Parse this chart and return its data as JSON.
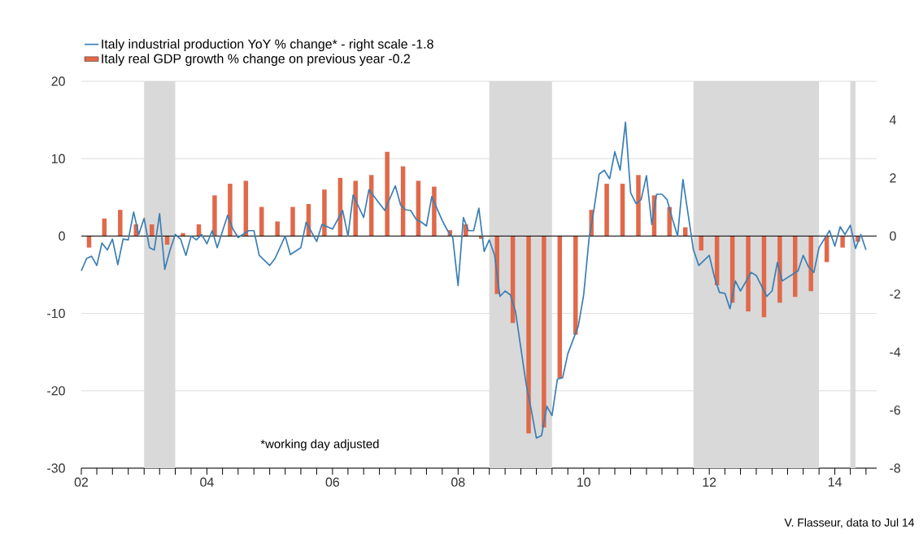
{
  "chart_data": {
    "type": "line",
    "series": [
      {
        "name": "Italy industrial production YoY % change* - right scale -1.8",
        "color": "#3a7fb5",
        "x": [
          "2002-01",
          "2002-02",
          "2002-03",
          "2002-04",
          "2002-05",
          "2002-06",
          "2002-07",
          "2002-08",
          "2002-09",
          "2002-10",
          "2002-11",
          "2002-12",
          "2003-01",
          "2003-02",
          "2003-03",
          "2003-04",
          "2003-05",
          "2003-06",
          "2003-07",
          "2003-08",
          "2003-09",
          "2003-10",
          "2003-11",
          "2003-12",
          "2004-01",
          "2004-02",
          "2004-03",
          "2004-05",
          "2004-06",
          "2004-07",
          "2004-09",
          "2004-10",
          "2004-11",
          "2005-01",
          "2005-02",
          "2005-04",
          "2005-05",
          "2005-07",
          "2005-08",
          "2005-10",
          "2005-11",
          "2006-01",
          "2006-03",
          "2006-04",
          "2006-05",
          "2006-07",
          "2006-08",
          "2006-10",
          "2006-11",
          "2007-01",
          "2007-02",
          "2007-03",
          "2007-04",
          "2007-05",
          "2007-06",
          "2007-07",
          "2007-08",
          "2007-10",
          "2007-11",
          "2007-12",
          "2008-01",
          "2008-02",
          "2008-03",
          "2008-04",
          "2008-05",
          "2008-06",
          "2008-07",
          "2008-08",
          "2008-09",
          "2008-10",
          "2008-11",
          "2008-12",
          "2009-01",
          "2009-02",
          "2009-03",
          "2009-04",
          "2009-05",
          "2009-06",
          "2009-07",
          "2009-08",
          "2009-09",
          "2009-10",
          "2009-12",
          "2010-01",
          "2010-02",
          "2010-03",
          "2010-04",
          "2010-05",
          "2010-06",
          "2010-07",
          "2010-08",
          "2010-09",
          "2010-10",
          "2010-11",
          "2010-12",
          "2011-01",
          "2011-02",
          "2011-03",
          "2011-04",
          "2011-05",
          "2011-06",
          "2011-07",
          "2011-08",
          "2011-10",
          "2011-11",
          "2012-01",
          "2012-02",
          "2012-03",
          "2012-04",
          "2012-05",
          "2012-06",
          "2012-07",
          "2012-09",
          "2012-10",
          "2012-12",
          "2013-01",
          "2013-02",
          "2013-03",
          "2013-06",
          "2013-07",
          "2013-08",
          "2013-09",
          "2013-10",
          "2013-12",
          "2014-01",
          "2014-02",
          "2014-03",
          "2014-04",
          "2014-05",
          "2014-06",
          "2014-07"
        ],
        "values": [
          -4.5,
          -2.9,
          -2.6,
          -3.8,
          -0.9,
          -1.8,
          -0.4,
          -3.7,
          -0.4,
          -0.5,
          3.1,
          0.2,
          2.3,
          -1.5,
          -1.8,
          2.9,
          -4.3,
          -1.8,
          0.2,
          -0.4,
          -2.5,
          0.0,
          -0.5,
          0.2,
          -1.0,
          0.7,
          -1.5,
          2.7,
          0.9,
          -0.2,
          0.7,
          0.7,
          -2.5,
          -3.8,
          -2.9,
          0.0,
          -2.4,
          -1.5,
          1.8,
          -0.7,
          1.5,
          0.9,
          3.3,
          0.0,
          5.3,
          2.4,
          6.0,
          4.2,
          3.3,
          6.5,
          4.0,
          3.4,
          3.3,
          2.2,
          1.8,
          1.3,
          5.1,
          2.0,
          0.7,
          -0.2,
          -6.4,
          2.4,
          0.7,
          0.7,
          3.6,
          -2.0,
          -0.5,
          -2.5,
          -7.8,
          -7.1,
          -7.6,
          -9.8,
          -14.5,
          -19.2,
          -22.3,
          -26.1,
          -25.8,
          -22.0,
          -23.2,
          -18.5,
          -18.3,
          -15.2,
          -11.6,
          -7.6,
          -0.4,
          3.3,
          8.0,
          8.5,
          7.4,
          10.9,
          8.5,
          14.7,
          5.6,
          4.2,
          4.7,
          7.8,
          1.5,
          5.4,
          5.4,
          4.7,
          2.2,
          0.0,
          7.3,
          -1.8,
          -3.8,
          -2.5,
          -5.4,
          -7.3,
          -7.4,
          -9.4,
          -5.8,
          -7.1,
          -4.7,
          -5.1,
          -7.8,
          -7.1,
          -3.4,
          -5.8,
          -4.5,
          -2.5,
          -4.0,
          -4.7,
          -1.5,
          0.7,
          -1.3,
          1.2,
          0.2,
          1.4,
          -1.6,
          0.2,
          -1.8
        ]
      },
      {
        "name": "Italy real GDP growth % change on previous year -0.2",
        "type": "bar",
        "axis": "y2",
        "color": "#e0694a",
        "x": [
          "2002-02-15",
          "2002-05-15",
          "2002-08-15",
          "2002-11-15",
          "2003-02-15",
          "2003-05-15",
          "2003-08-15",
          "2003-11-15",
          "2004-02-15",
          "2004-05-15",
          "2004-08-15",
          "2004-11-15",
          "2005-02-15",
          "2005-05-15",
          "2005-08-15",
          "2005-11-15",
          "2006-02-15",
          "2006-05-15",
          "2006-08-15",
          "2006-11-15",
          "2007-02-15",
          "2007-05-15",
          "2007-08-15",
          "2007-11-15",
          "2008-02-15",
          "2008-05-15",
          "2008-08-15",
          "2008-11-15",
          "2009-02-15",
          "2009-05-15",
          "2009-08-15",
          "2009-11-15",
          "2010-02-15",
          "2010-05-15",
          "2010-08-15",
          "2010-11-15",
          "2011-02-15",
          "2011-05-15",
          "2011-08-15",
          "2011-11-15",
          "2012-02-15",
          "2012-05-15",
          "2012-08-15",
          "2012-11-15",
          "2013-02-15",
          "2013-05-15",
          "2013-08-15",
          "2013-11-15",
          "2014-02-15",
          "2014-05-15"
        ],
        "values": [
          -0.4,
          0.6,
          0.9,
          0.4,
          0.4,
          -0.3,
          0.1,
          0.4,
          1.4,
          1.8,
          1.9,
          1.0,
          0.5,
          1.0,
          1.1,
          1.6,
          2.0,
          1.9,
          2.1,
          2.9,
          2.4,
          1.9,
          1.7,
          0.2,
          0.4,
          -0.1,
          -2.0,
          -3.0,
          -6.8,
          -6.6,
          -4.9,
          -3.4,
          0.9,
          1.8,
          1.8,
          2.1,
          1.4,
          1.0,
          0.3,
          -0.5,
          -1.7,
          -2.3,
          -2.6,
          -2.8,
          -2.3,
          -2.1,
          -1.9,
          -0.9,
          -0.4,
          -0.2
        ]
      }
    ],
    "xlim": [
      "2002-01",
      "2014-09"
    ],
    "xticks": [
      {
        "value": "2002-01",
        "label": "02"
      },
      {
        "value": "2002-04",
        "label": null
      },
      {
        "value": "2002-07",
        "label": null
      },
      {
        "value": "2002-10",
        "label": null
      },
      {
        "value": "2003-01",
        "label": null
      },
      {
        "value": "2003-04",
        "label": null
      },
      {
        "value": "2003-07",
        "label": null
      },
      {
        "value": "2003-10",
        "label": null
      },
      {
        "value": "2004-01",
        "label": "04"
      },
      {
        "value": "2004-04",
        "label": null
      },
      {
        "value": "2004-07",
        "label": null
      },
      {
        "value": "2004-10",
        "label": null
      },
      {
        "value": "2005-01",
        "label": null
      },
      {
        "value": "2005-04",
        "label": null
      },
      {
        "value": "2005-07",
        "label": null
      },
      {
        "value": "2005-10",
        "label": null
      },
      {
        "value": "2006-01",
        "label": "06"
      },
      {
        "value": "2006-04",
        "label": null
      },
      {
        "value": "2006-07",
        "label": null
      },
      {
        "value": "2006-10",
        "label": null
      },
      {
        "value": "2007-01",
        "label": null
      },
      {
        "value": "2007-04",
        "label": null
      },
      {
        "value": "2007-07",
        "label": null
      },
      {
        "value": "2007-10",
        "label": null
      },
      {
        "value": "2008-01",
        "label": "08"
      },
      {
        "value": "2008-04",
        "label": null
      },
      {
        "value": "2008-07",
        "label": null
      },
      {
        "value": "2008-10",
        "label": null
      },
      {
        "value": "2009-01",
        "label": null
      },
      {
        "value": "2009-04",
        "label": null
      },
      {
        "value": "2009-07",
        "label": null
      },
      {
        "value": "2009-10",
        "label": null
      },
      {
        "value": "2010-01",
        "label": "10"
      },
      {
        "value": "2010-04",
        "label": null
      },
      {
        "value": "2010-07",
        "label": null
      },
      {
        "value": "2010-10",
        "label": null
      },
      {
        "value": "2011-01",
        "label": null
      },
      {
        "value": "2011-04",
        "label": null
      },
      {
        "value": "2011-07",
        "label": null
      },
      {
        "value": "2011-10",
        "label": null
      },
      {
        "value": "2012-01",
        "label": "12"
      },
      {
        "value": "2012-04",
        "label": null
      },
      {
        "value": "2012-07",
        "label": null
      },
      {
        "value": "2012-10",
        "label": null
      },
      {
        "value": "2013-01",
        "label": null
      },
      {
        "value": "2013-04",
        "label": null
      },
      {
        "value": "2013-07",
        "label": null
      },
      {
        "value": "2013-10",
        "label": null
      },
      {
        "value": "2014-01",
        "label": "14"
      },
      {
        "value": "2014-04",
        "label": null
      },
      {
        "value": "2014-07",
        "label": null
      }
    ],
    "ylim": [
      -30,
      20
    ],
    "yticks": [
      -30,
      -20,
      -10,
      0,
      10,
      20
    ],
    "y2lim": [
      -8,
      5.33
    ],
    "y2ticks": [
      -8,
      -6,
      -4,
      -2,
      0,
      2,
      4
    ],
    "bands": [
      {
        "axis": "x",
        "from": "2003-01",
        "to": "2003-07",
        "color": "#d9d9d9"
      },
      {
        "axis": "x",
        "from": "2008-07",
        "to": "2009-07",
        "color": "#d9d9d9"
      },
      {
        "axis": "x",
        "from": "2011-10",
        "to": "2013-10",
        "color": "#d9d9d9"
      },
      {
        "axis": "x",
        "from": "2014-04",
        "to": "2014-05",
        "color": "#d9d9d9"
      }
    ],
    "ref_lines": [
      {
        "axis": "y",
        "value": 0,
        "color": "#000000"
      }
    ],
    "grid": "y",
    "legend": "top left",
    "annotations": [
      "*working day adjusted",
      "V. Flasseur, data to Jul 14"
    ]
  }
}
